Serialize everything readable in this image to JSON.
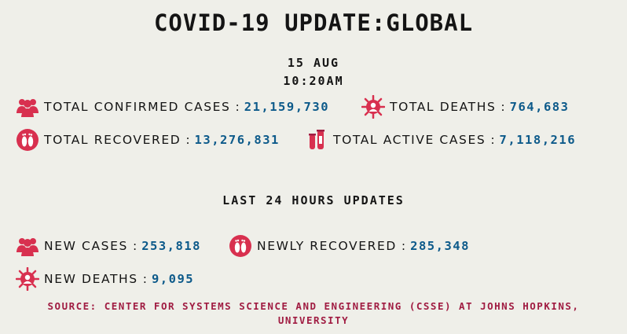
{
  "title": "COVID-19 UPDATE:GLOBAL",
  "date": "15 AUG",
  "time": "10:20AM",
  "global": {
    "confirmed": {
      "label": "TOTAL CONFIRMED CASES",
      "value": "21,159,730",
      "icon": "people-group-icon"
    },
    "deaths": {
      "label": "TOTAL DEATHS",
      "value": "764,683",
      "icon": "virus-deaths-icon"
    },
    "recovered": {
      "label": "TOTAL RECOVERED",
      "value": "13,276,831",
      "icon": "footprints-icon"
    },
    "active": {
      "label": "TOTAL ACTIVE CASES",
      "value": "7,118,216",
      "icon": "test-tubes-icon"
    }
  },
  "last24": {
    "title": "LAST 24 HOURS UPDATES",
    "new_cases": {
      "label": "NEW CASES",
      "value": "253,818",
      "icon": "people-group-icon"
    },
    "newly_recovered": {
      "label": "NEWLY RECOVERED",
      "value": "285,348",
      "icon": "footprints-icon"
    },
    "new_deaths": {
      "label": "NEW DEATHS",
      "value": "9,095",
      "icon": "virus-deaths-icon"
    }
  },
  "source": {
    "line1": "SOURCE: CENTER FOR SYSTEMS SCIENCE AND ENGINEERING (CSSE) AT JOHNS HOPKINS,",
    "line2": "UNIVERSITY"
  },
  "colors": {
    "accent": "#d8304f",
    "value": "#0d5a8a",
    "source": "#a01c42",
    "background": "#efefe9"
  }
}
